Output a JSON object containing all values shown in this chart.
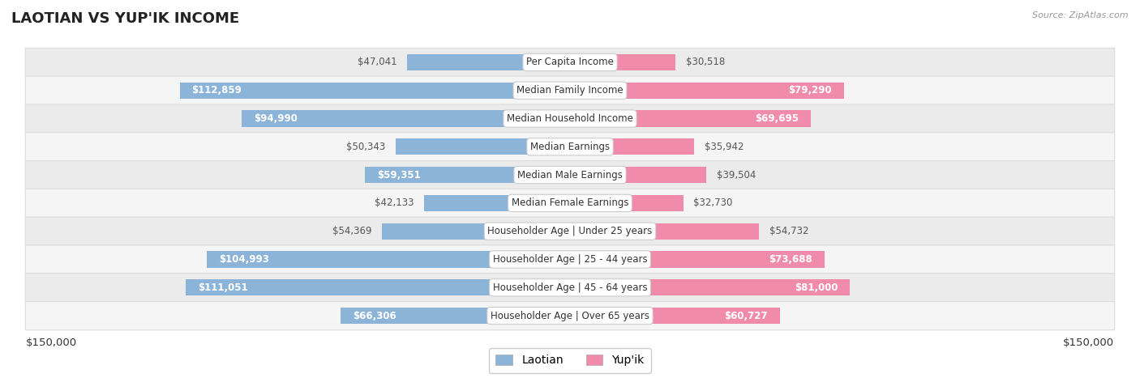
{
  "title": "LAOTIAN VS YUP'IK INCOME",
  "source": "Source: ZipAtlas.com",
  "max_value": 150000,
  "categories": [
    "Per Capita Income",
    "Median Family Income",
    "Median Household Income",
    "Median Earnings",
    "Median Male Earnings",
    "Median Female Earnings",
    "Householder Age | Under 25 years",
    "Householder Age | 25 - 44 years",
    "Householder Age | 45 - 64 years",
    "Householder Age | Over 65 years"
  ],
  "laotian_values": [
    47041,
    112859,
    94990,
    50343,
    59351,
    42133,
    54369,
    104993,
    111051,
    66306
  ],
  "yupik_values": [
    30518,
    79290,
    69695,
    35942,
    39504,
    32730,
    54732,
    73688,
    81000,
    60727
  ],
  "laotian_color": "#8cb4d8",
  "yupik_color": "#f08bab",
  "label_inside_color": "#ffffff",
  "label_outside_color": "#555555",
  "bg_color": "#ffffff",
  "row_bg_even": "#ebebeb",
  "row_bg_odd": "#f5f5f5",
  "row_border_color": "#dddddd",
  "center_label_bg": "#ffffff",
  "center_label_border": "#cccccc",
  "bar_height": 0.58,
  "inside_threshold": 55000,
  "legend_laotian": "Laotian",
  "legend_yupik": "Yup'ik",
  "title_fontsize": 13,
  "label_fontsize": 8.5,
  "cat_fontsize": 8.5,
  "tick_fontsize": 9.5
}
